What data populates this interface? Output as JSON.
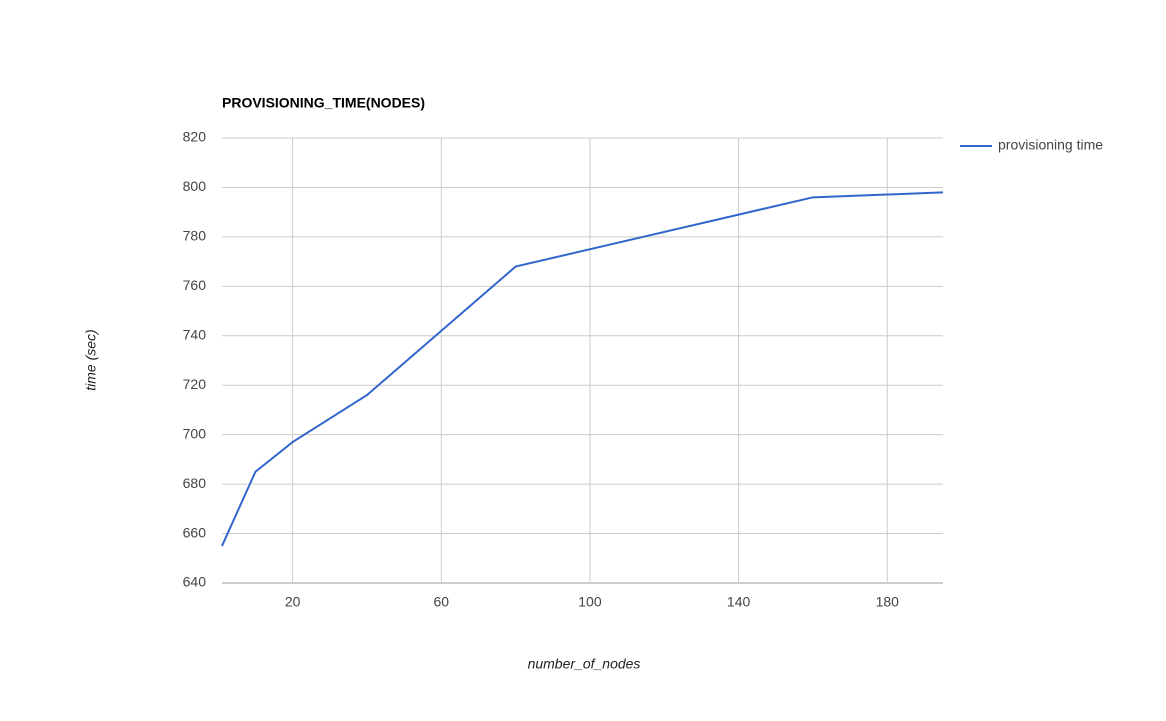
{
  "chart_data": {
    "type": "line",
    "title": "PROVISIONING_TIME(NODES)",
    "x_label": "number_of_nodes",
    "y_label": "time (sec)",
    "x": [
      1,
      10,
      20,
      40,
      80,
      160,
      195
    ],
    "series": [
      {
        "name": "provisioning time",
        "color": "#3366cc",
        "values": [
          655,
          685,
          697,
          716,
          768,
          796,
          798
        ]
      }
    ],
    "xlim": [
      1,
      195
    ],
    "xticks": [
      20,
      60,
      100,
      140,
      180
    ],
    "ylim": [
      640,
      820
    ],
    "yticks": [
      640,
      660,
      680,
      700,
      720,
      740,
      760,
      780,
      800,
      820
    ],
    "grid": true,
    "legend": "right"
  }
}
